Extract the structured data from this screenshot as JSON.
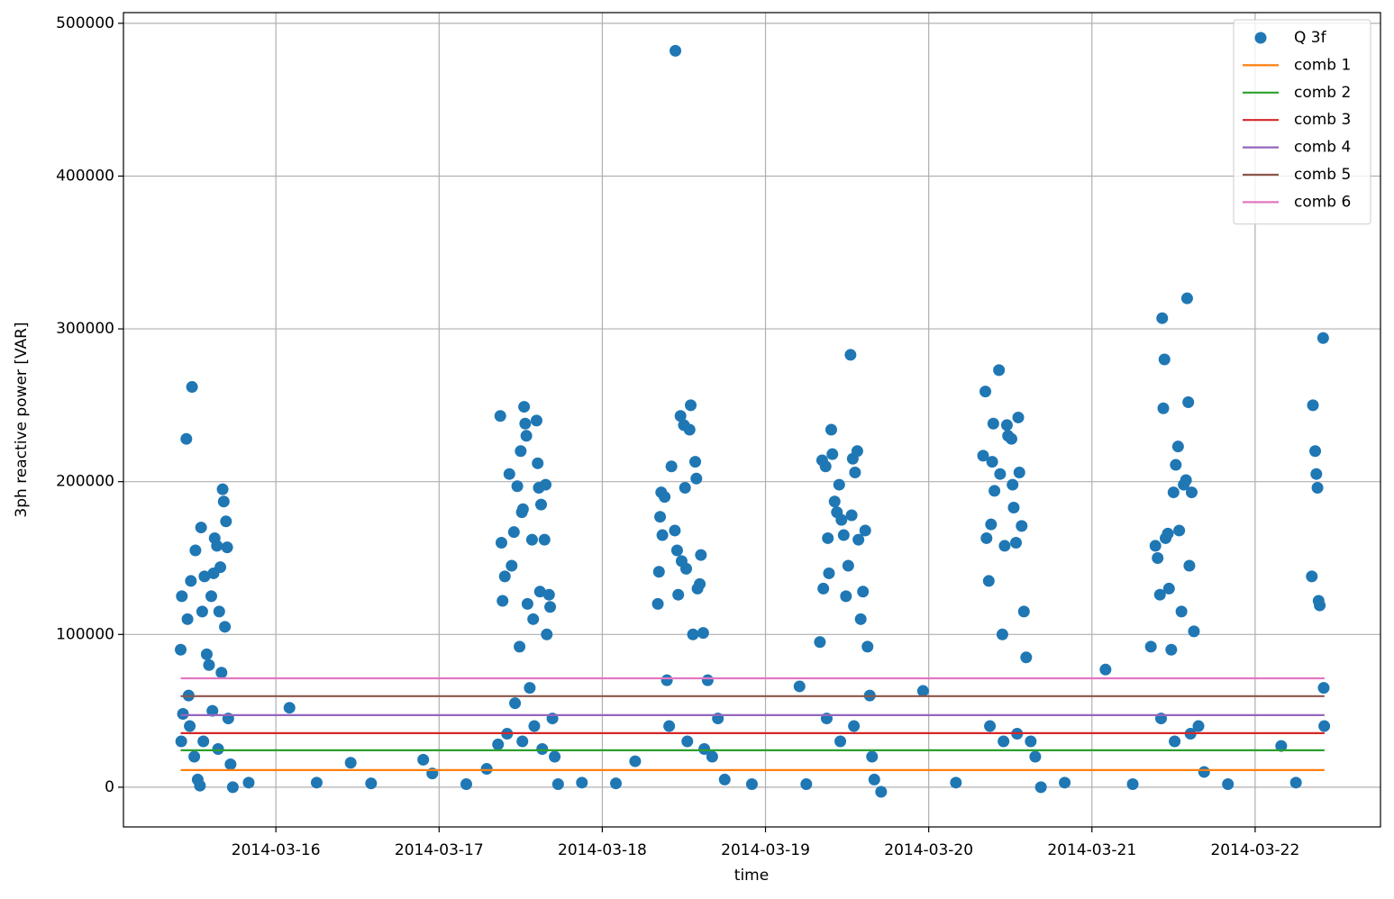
{
  "chart_data": {
    "type": "scatter",
    "xlabel": "time",
    "ylabel": "3ph reactive power [VAR]",
    "xlim": [
      "2014-03-15T01:35",
      "2014-03-22T18:26"
    ],
    "xticks": [
      "2014-03-16",
      "2014-03-17",
      "2014-03-18",
      "2014-03-19",
      "2014-03-20",
      "2014-03-21",
      "2014-03-22"
    ],
    "ylim": [
      -26000,
      507000
    ],
    "yticks": [
      0,
      100000,
      200000,
      300000,
      400000,
      500000
    ],
    "grid": true,
    "legend": "upper right",
    "series": [
      {
        "name": "Q 3f",
        "color": "#1f77b4",
        "style": "marker",
        "x": [
          "2014-03-15T10:00",
          "2014-03-15T10:05",
          "2014-03-15T10:10",
          "2014-03-15T10:20",
          "2014-03-15T10:50",
          "2014-03-15T11:00",
          "2014-03-15T11:10",
          "2014-03-15T11:40",
          "2014-03-15T11:30",
          "2014-03-15T12:00",
          "2014-03-15T12:10",
          "2014-03-15T12:30",
          "2014-03-15T12:50",
          "2014-03-15T13:00",
          "2014-03-15T13:10",
          "2014-03-15T13:30",
          "2014-03-15T13:50",
          "2014-03-15T14:10",
          "2014-03-15T14:30",
          "2014-03-15T14:50",
          "2014-03-15T15:00",
          "2014-03-15T15:20",
          "2014-03-15T15:40",
          "2014-03-15T15:50",
          "2014-03-15T16:00",
          "2014-03-15T16:10",
          "2014-03-15T16:20",
          "2014-03-15T16:30",
          "2014-03-15T16:40",
          "2014-03-15T16:50",
          "2014-03-15T17:00",
          "2014-03-15T17:20",
          "2014-03-15T17:40",
          "2014-03-15T11:20",
          "2014-03-15T13:20",
          "2014-03-15T14:40",
          "2014-03-15T15:30",
          "2014-03-15T20:00",
          "2014-03-16T02:00",
          "2014-03-16T06:00",
          "2014-03-16T11:00",
          "2014-03-16T14:00",
          "2014-03-16T21:40",
          "2014-03-16T23:00",
          "2014-03-17T04:00",
          "2014-03-17T07:00",
          "2014-03-17T08:40",
          "2014-03-17T09:00",
          "2014-03-17T09:10",
          "2014-03-17T09:20",
          "2014-03-17T09:40",
          "2014-03-17T10:20",
          "2014-03-17T10:40",
          "2014-03-17T11:00",
          "2014-03-17T11:10",
          "2014-03-17T11:30",
          "2014-03-17T11:50",
          "2014-03-17T12:00",
          "2014-03-17T12:10",
          "2014-03-17T12:20",
          "2014-03-17T12:30",
          "2014-03-17T12:40",
          "2014-03-17T12:50",
          "2014-03-17T13:00",
          "2014-03-17T13:20",
          "2014-03-17T13:40",
          "2014-03-17T13:50",
          "2014-03-17T14:20",
          "2014-03-17T14:30",
          "2014-03-17T14:40",
          "2014-03-17T14:50",
          "2014-03-17T15:00",
          "2014-03-17T15:30",
          "2014-03-17T15:40",
          "2014-03-17T15:50",
          "2014-03-17T16:10",
          "2014-03-17T16:20",
          "2014-03-17T16:40",
          "2014-03-17T17:00",
          "2014-03-17T17:30",
          "2014-03-17T10:00",
          "2014-03-17T12:15",
          "2014-03-17T14:00",
          "2014-03-17T15:10",
          "2014-03-17T21:00",
          "2014-03-18T02:00",
          "2014-03-18T04:50",
          "2014-03-18T08:10",
          "2014-03-18T08:20",
          "2014-03-18T08:30",
          "2014-03-18T08:40",
          "2014-03-18T08:50",
          "2014-03-18T09:10",
          "2014-03-18T09:30",
          "2014-03-18T10:10",
          "2014-03-18T10:45",
          "2014-03-18T10:40",
          "2014-03-18T11:00",
          "2014-03-18T11:10",
          "2014-03-18T11:30",
          "2014-03-18T11:40",
          "2014-03-18T12:00",
          "2014-03-18T12:10",
          "2014-03-18T12:20",
          "2014-03-18T12:50",
          "2014-03-18T13:00",
          "2014-03-18T13:20",
          "2014-03-18T13:40",
          "2014-03-18T13:50",
          "2014-03-18T14:00",
          "2014-03-18T14:20",
          "2014-03-18T14:30",
          "2014-03-18T14:50",
          "2014-03-18T15:30",
          "2014-03-18T16:10",
          "2014-03-18T17:00",
          "2014-03-18T18:00",
          "2014-03-18T09:50",
          "2014-03-18T12:30",
          "2014-03-18T15:00",
          "2014-03-18T22:00",
          "2014-03-19T05:00",
          "2014-03-19T06:00",
          "2014-03-19T08:00",
          "2014-03-19T08:20",
          "2014-03-19T08:30",
          "2014-03-19T08:50",
          "2014-03-19T09:10",
          "2014-03-19T09:20",
          "2014-03-19T09:40",
          "2014-03-19T09:50",
          "2014-03-19T10:10",
          "2014-03-19T10:30",
          "2014-03-19T10:50",
          "2014-03-19T11:10",
          "2014-03-19T11:30",
          "2014-03-19T11:50",
          "2014-03-19T12:10",
          "2014-03-19T12:30",
          "2014-03-19T12:40",
          "2014-03-19T12:50",
          "2014-03-19T13:10",
          "2014-03-19T13:30",
          "2014-03-19T13:40",
          "2014-03-19T14:00",
          "2014-03-19T14:20",
          "2014-03-19T14:40",
          "2014-03-19T15:00",
          "2014-03-19T15:20",
          "2014-03-19T16:00",
          "2014-03-19T17:00",
          "2014-03-19T09:00",
          "2014-03-19T11:00",
          "2014-03-19T13:00",
          "2014-03-19T15:40",
          "2014-03-19T23:10",
          "2014-03-20T04:00",
          "2014-03-20T08:00",
          "2014-03-20T08:20",
          "2014-03-20T08:30",
          "2014-03-20T08:50",
          "2014-03-20T09:10",
          "2014-03-20T09:20",
          "2014-03-20T09:30",
          "2014-03-20T09:40",
          "2014-03-20T10:20",
          "2014-03-20T10:30",
          "2014-03-20T10:50",
          "2014-03-20T11:10",
          "2014-03-20T11:30",
          "2014-03-20T11:40",
          "2014-03-20T12:10",
          "2014-03-20T12:20",
          "2014-03-20T12:30",
          "2014-03-20T12:50",
          "2014-03-20T13:10",
          "2014-03-20T13:20",
          "2014-03-20T13:40",
          "2014-03-20T14:00",
          "2014-03-20T14:20",
          "2014-03-20T15:00",
          "2014-03-20T16:30",
          "2014-03-20T09:00",
          "2014-03-20T11:00",
          "2014-03-20T13:00",
          "2014-03-20T15:40",
          "2014-03-20T20:00",
          "2014-03-21T02:00",
          "2014-03-21T06:00",
          "2014-03-21T08:40",
          "2014-03-21T09:20",
          "2014-03-21T09:40",
          "2014-03-21T10:00",
          "2014-03-21T10:20",
          "2014-03-21T10:30",
          "2014-03-21T10:40",
          "2014-03-21T10:50",
          "2014-03-21T11:10",
          "2014-03-21T11:20",
          "2014-03-21T11:40",
          "2014-03-21T12:00",
          "2014-03-21T12:20",
          "2014-03-21T12:40",
          "2014-03-21T12:50",
          "2014-03-21T13:10",
          "2014-03-21T13:30",
          "2014-03-21T13:50",
          "2014-03-21T14:00",
          "2014-03-21T14:10",
          "2014-03-21T14:20",
          "2014-03-21T14:40",
          "2014-03-21T15:00",
          "2014-03-21T15:40",
          "2014-03-21T16:30",
          "2014-03-21T10:10",
          "2014-03-21T12:10",
          "2014-03-21T14:30",
          "2014-03-21T20:00",
          "2014-03-22T03:50",
          "2014-03-22T06:00",
          "2014-03-22T08:20",
          "2014-03-22T08:30",
          "2014-03-22T08:50",
          "2014-03-22T09:00",
          "2014-03-22T09:10",
          "2014-03-22T09:20",
          "2014-03-22T09:30",
          "2014-03-22T10:00",
          "2014-03-22T10:05",
          "2014-03-22T10:10"
        ],
        "values": [
          90000,
          30000,
          125000,
          48000,
          228000,
          110000,
          60000,
          262000,
          135000,
          20000,
          155000,
          5000,
          1000,
          170000,
          115000,
          138000,
          87000,
          80000,
          125000,
          140000,
          163000,
          158000,
          115000,
          144000,
          75000,
          195000,
          187000,
          105000,
          174000,
          157000,
          45000,
          15000,
          0,
          40000,
          30000,
          50000,
          25000,
          3000,
          52000,
          3000,
          16000,
          2500,
          18000,
          9000,
          2000,
          12000,
          28000,
          243000,
          160000,
          122000,
          138000,
          205000,
          145000,
          167000,
          55000,
          197000,
          92000,
          220000,
          180000,
          182000,
          249000,
          238000,
          230000,
          120000,
          65000,
          162000,
          110000,
          240000,
          212000,
          196000,
          128000,
          185000,
          162000,
          198000,
          100000,
          126000,
          118000,
          45000,
          20000,
          2000,
          35000,
          30000,
          40000,
          25000,
          3000,
          2500,
          17000,
          120000,
          141000,
          177000,
          193000,
          165000,
          190000,
          70000,
          210000,
          482000,
          168000,
          155000,
          126000,
          243000,
          148000,
          237000,
          196000,
          143000,
          234000,
          250000,
          100000,
          213000,
          202000,
          130000,
          133000,
          152000,
          101000,
          70000,
          20000,
          45000,
          5000,
          40000,
          30000,
          25000,
          2000,
          66000,
          2000,
          95000,
          214000,
          130000,
          210000,
          163000,
          140000,
          234000,
          218000,
          187000,
          180000,
          198000,
          175000,
          165000,
          125000,
          145000,
          283000,
          178000,
          215000,
          206000,
          220000,
          162000,
          110000,
          128000,
          168000,
          92000,
          60000,
          5000,
          -3000,
          45000,
          30000,
          40000,
          20000,
          63000,
          3000,
          217000,
          259000,
          163000,
          135000,
          172000,
          213000,
          238000,
          194000,
          273000,
          205000,
          100000,
          158000,
          237000,
          230000,
          228000,
          198000,
          183000,
          160000,
          242000,
          206000,
          171000,
          115000,
          85000,
          30000,
          0,
          40000,
          30000,
          35000,
          20000,
          3000,
          77000,
          2000,
          92000,
          158000,
          150000,
          126000,
          307000,
          248000,
          280000,
          163000,
          166000,
          130000,
          90000,
          193000,
          211000,
          223000,
          168000,
          115000,
          198000,
          201000,
          320000,
          252000,
          145000,
          193000,
          102000,
          40000,
          10000,
          45000,
          30000,
          35000,
          2000,
          27000,
          3000,
          138000,
          250000,
          220000,
          205000,
          196000,
          122000,
          119000,
          294000,
          65000,
          40000
        ]
      },
      {
        "name": "comb 1",
        "color": "#ff7f0e",
        "style": "line",
        "x": [
          "2014-03-15T10:00",
          "2014-03-22T10:12"
        ],
        "values": [
          11200,
          11200
        ]
      },
      {
        "name": "comb 2",
        "color": "#2ca02c",
        "style": "line",
        "x": [
          "2014-03-15T10:00",
          "2014-03-22T10:12"
        ],
        "values": [
          24200,
          24200
        ]
      },
      {
        "name": "comb 3",
        "color": "#d62728",
        "style": "line",
        "x": [
          "2014-03-15T10:00",
          "2014-03-22T10:12"
        ],
        "values": [
          35400,
          35400
        ]
      },
      {
        "name": "comb 4",
        "color": "#9467bd",
        "style": "line",
        "x": [
          "2014-03-15T10:00",
          "2014-03-22T10:12"
        ],
        "values": [
          47200,
          47200
        ]
      },
      {
        "name": "comb 5",
        "color": "#8c564b",
        "style": "line",
        "x": [
          "2014-03-15T10:00",
          "2014-03-22T10:12"
        ],
        "values": [
          59600,
          59600
        ]
      },
      {
        "name": "comb 6",
        "color": "#e377c2",
        "style": "line",
        "x": [
          "2014-03-15T10:00",
          "2014-03-22T10:12"
        ],
        "values": [
          71300,
          71300
        ]
      }
    ]
  }
}
